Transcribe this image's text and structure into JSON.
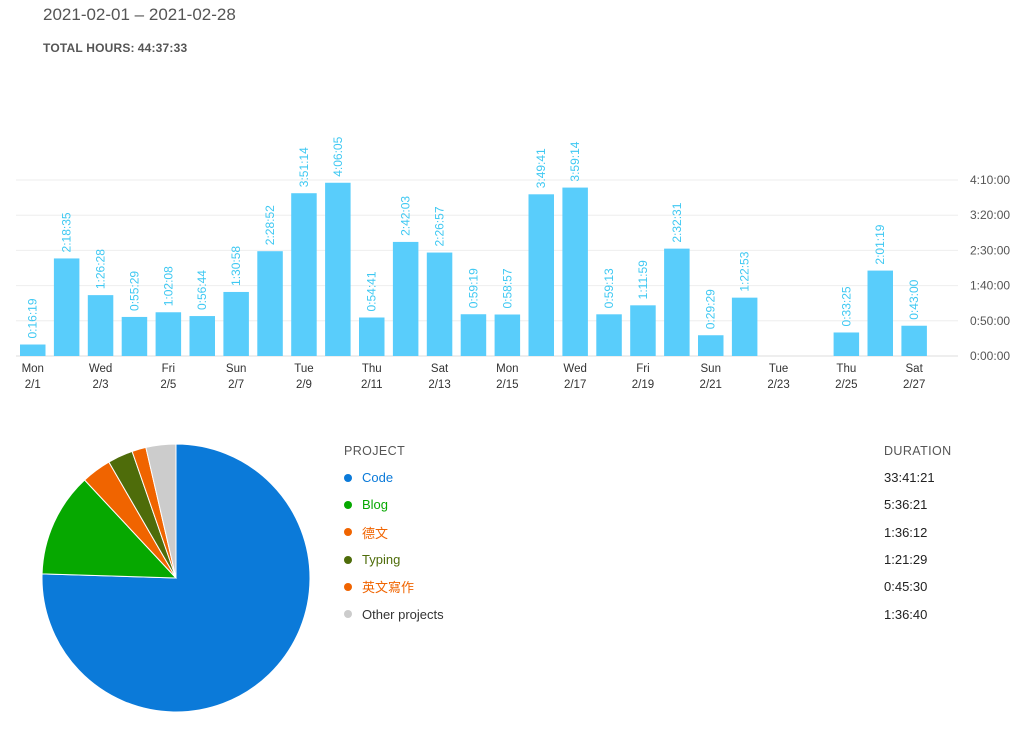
{
  "header": {
    "date_range": "2021-02-01 – 2021-02-28",
    "total_hours_label": "TOTAL HOURS:",
    "total_hours_value": "44:37:33"
  },
  "chart_data": [
    {
      "type": "bar",
      "bar_color": "#59cdfb",
      "label_color": "#3ec8f2",
      "x_day_labels": [
        "Mon",
        "",
        "Wed",
        "",
        "Fri",
        "",
        "Sun",
        "",
        "Tue",
        "",
        "Thu",
        "",
        "Sat",
        "",
        "Mon",
        "",
        "Wed",
        "",
        "Fri",
        "",
        "Sun",
        "",
        "Tue",
        "",
        "Thu",
        "",
        "Sat",
        ""
      ],
      "x_date_labels": [
        "2/1",
        "",
        "2/3",
        "",
        "2/5",
        "",
        "2/7",
        "",
        "2/9",
        "",
        "2/11",
        "",
        "2/13",
        "",
        "2/15",
        "",
        "2/17",
        "",
        "2/19",
        "",
        "2/21",
        "",
        "2/23",
        "",
        "2/25",
        "",
        "2/27",
        ""
      ],
      "values_seconds": [
        979,
        8315,
        5188,
        3329,
        3728,
        3404,
        5458,
        8932,
        13874,
        14765,
        3281,
        9723,
        8817,
        3559,
        3537,
        13781,
        14354,
        3553,
        4319,
        9151,
        1769,
        4973,
        0,
        0,
        2005,
        7279,
        2580,
        0
      ],
      "labels": [
        "0:16:19",
        "2:18:35",
        "1:26:28",
        "0:55:29",
        "1:02:08",
        "0:56:44",
        "1:30:58",
        "2:28:52",
        "3:51:14",
        "4:06:05",
        "0:54:41",
        "2:42:03",
        "2:26:57",
        "0:59:19",
        "0:58:57",
        "3:49:41",
        "3:59:14",
        "0:59:13",
        "1:11:59",
        "2:32:31",
        "0:29:29",
        "1:22:53",
        "",
        "",
        "0:33:25",
        "2:01:19",
        "0:43:00",
        ""
      ],
      "y_ticks": [
        "0:00:00",
        "0:50:00",
        "1:40:00",
        "2:30:00",
        "3:20:00",
        "4:10:00"
      ],
      "y_tick_seconds": [
        0,
        3000,
        6000,
        9000,
        12000,
        15000
      ],
      "ylim_seconds": [
        0,
        15000
      ],
      "y_axis_position": "right",
      "grid": true
    },
    {
      "type": "pie",
      "slices": [
        {
          "name": "Code",
          "seconds": 121281,
          "color": "#0b7ad9"
        },
        {
          "name": "Blog",
          "seconds": 20181,
          "color": "#06a800"
        },
        {
          "name": "德文",
          "seconds": 5772,
          "color": "#f06400"
        },
        {
          "name": "Typing",
          "seconds": 4889,
          "color": "#4e6c0a"
        },
        {
          "name": "英文寫作",
          "seconds": 2730,
          "color": "#f06400"
        },
        {
          "name": "Other projects",
          "seconds": 5800,
          "color": "#cccccc"
        }
      ]
    }
  ],
  "legend": {
    "project_header": "PROJECT",
    "duration_header": "DURATION",
    "rows": [
      {
        "name": "Code",
        "duration": "33:41:21",
        "color": "#0b7ad9",
        "text_color": "#0b7ad9"
      },
      {
        "name": "Blog",
        "duration": "5:36:21",
        "color": "#06a800",
        "text_color": "#06a800"
      },
      {
        "name": "德文",
        "duration": "1:36:12",
        "color": "#f06400",
        "text_color": "#f06400"
      },
      {
        "name": "Typing",
        "duration": "1:21:29",
        "color": "#4e6c0a",
        "text_color": "#4e6c0a"
      },
      {
        "name": "英文寫作",
        "duration": "0:45:30",
        "color": "#f06400",
        "text_color": "#f06400"
      },
      {
        "name": "Other projects",
        "duration": "1:36:40",
        "color": "#cccccc",
        "text_color": "#333333"
      }
    ]
  }
}
